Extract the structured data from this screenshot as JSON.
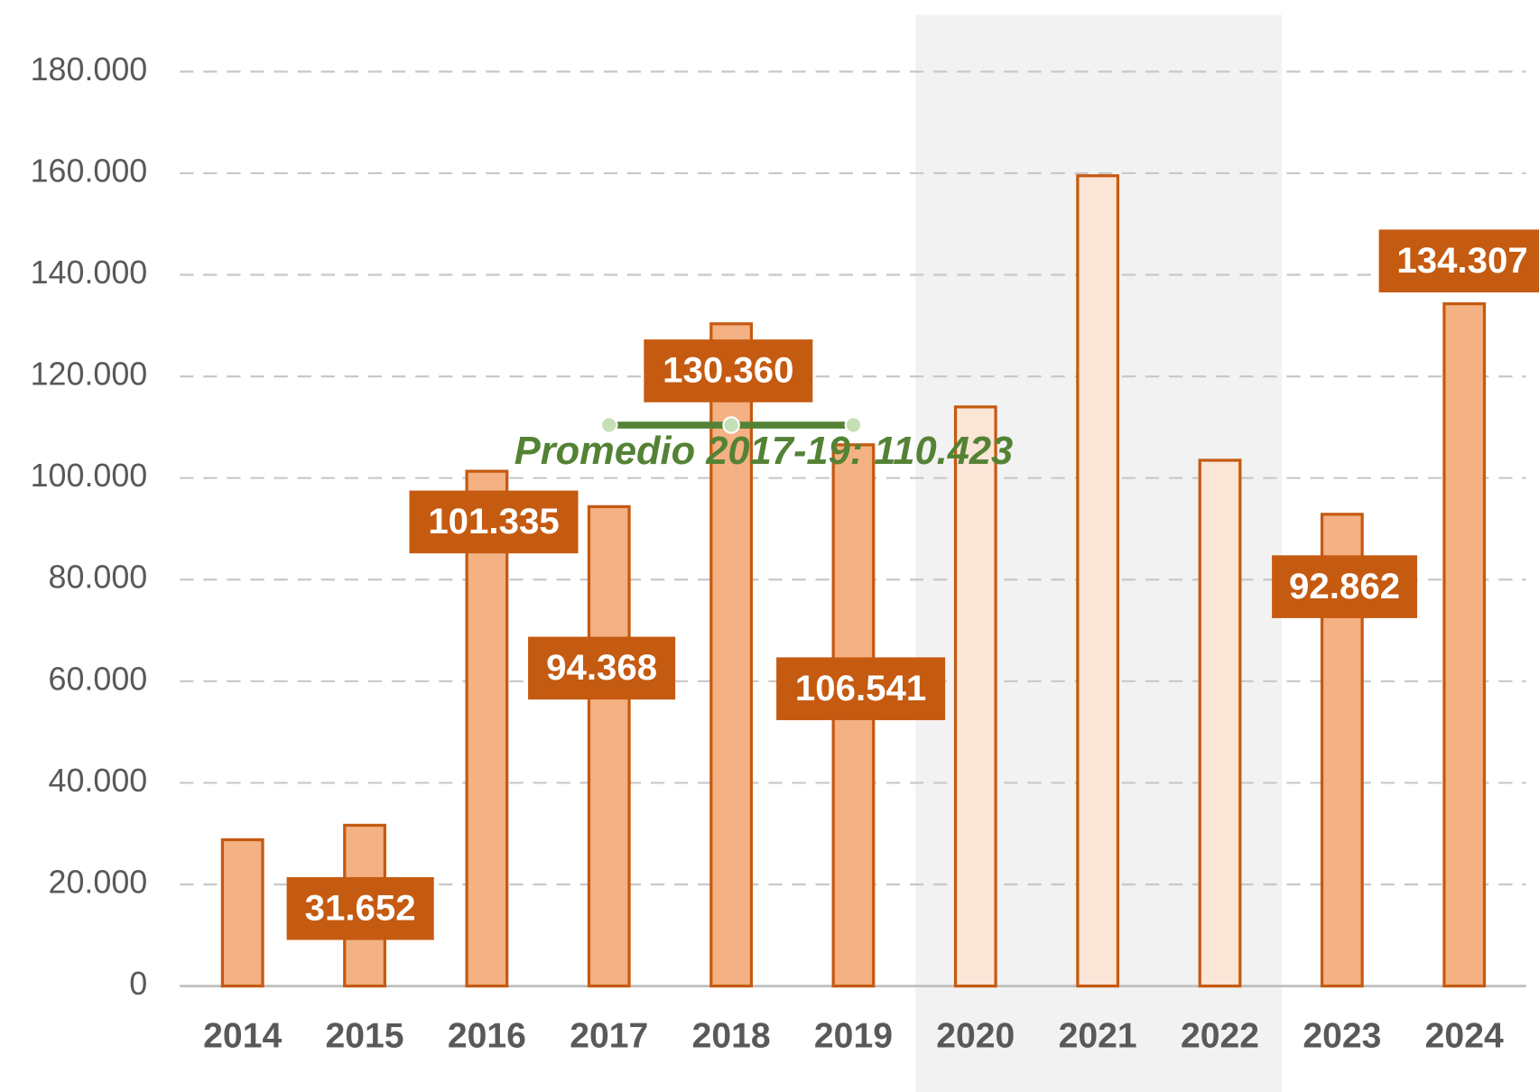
{
  "chart_data": {
    "type": "bar",
    "categories": [
      "2014",
      "2015",
      "2016",
      "2017",
      "2018",
      "2019",
      "2020",
      "2021",
      "2022",
      "2023",
      "2024"
    ],
    "values": [
      28800,
      31652,
      101335,
      94368,
      130360,
      106541,
      114000,
      159500,
      103500,
      92862,
      134307
    ],
    "value_labels": [
      null,
      "31.652",
      "101.335",
      "94.368",
      "130.360",
      "106.541",
      null,
      null,
      null,
      "92.862",
      "134.307"
    ],
    "colors": [
      "#f4b183",
      "#f4b183",
      "#f4b183",
      "#f4b183",
      "#f4b183",
      "#f4b183",
      "#fbe5d6",
      "#fbe5d6",
      "#fbe5d6",
      "#f4b183",
      "#f4b183"
    ],
    "edge_color": "#c55a11",
    "label_color": "#c55a11",
    "shade": {
      "categories": [
        "2020",
        "2022"
      ],
      "color": "#f2f2f2"
    },
    "annotation": {
      "label": "Promedio 2017-19: 110.423",
      "value": 110423,
      "categories": [
        "2017",
        "2019"
      ],
      "color": "#548235"
    },
    "ylim": [
      0,
      180000
    ],
    "yticks": [
      0,
      {
        "value": 20000,
        "label": "20.000"
      },
      {
        "value": 40000,
        "label": "40.000"
      },
      {
        "value": 60000,
        "label": "60.000"
      },
      {
        "value": 80000,
        "label": "80.000"
      },
      {
        "value": 100000,
        "label": "100.000"
      },
      {
        "value": 120000,
        "label": "120.000"
      },
      {
        "value": 140000,
        "label": "140.000"
      },
      {
        "value": 160000,
        "label": "160.000"
      },
      {
        "value": 180000,
        "label": "180.000"
      }
    ],
    "grid": true
  }
}
